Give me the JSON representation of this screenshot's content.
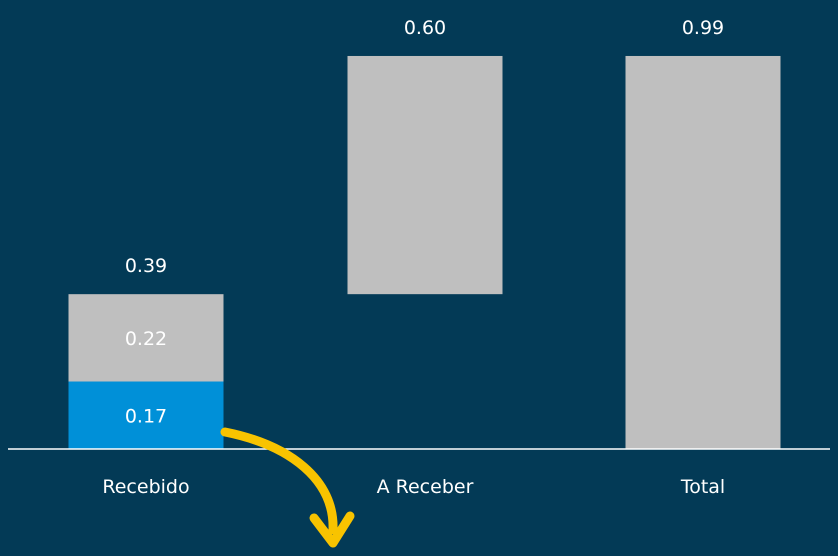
{
  "chart_data": {
    "type": "waterfall",
    "categories": [
      "Recebido",
      "A Receber",
      "Total"
    ],
    "totals": [
      0.39,
      0.6,
      0.99
    ],
    "ylim": [
      0,
      1
    ],
    "stacked_segments": {
      "Recebido": [
        {
          "value": 0.17,
          "color": "#0090d8"
        },
        {
          "value": 0.22,
          "color": "#bfbfbf"
        }
      ]
    },
    "floating": {
      "A Receber": {
        "start": 0.39,
        "end": 0.99,
        "color": "#bfbfbf"
      }
    },
    "total_bar": {
      "Total": {
        "value": 0.99,
        "color": "#bfbfbf"
      }
    },
    "legend": "none",
    "grid": false
  },
  "colors": {
    "background": "#033a56",
    "bar_grey": "#bfbfbf",
    "bar_blue": "#0090d8",
    "axis": "#ffffff",
    "text": "#ffffff",
    "arrow": "#f8c300"
  },
  "decorations": {
    "arrow": "curved-down-arrow-icon"
  }
}
